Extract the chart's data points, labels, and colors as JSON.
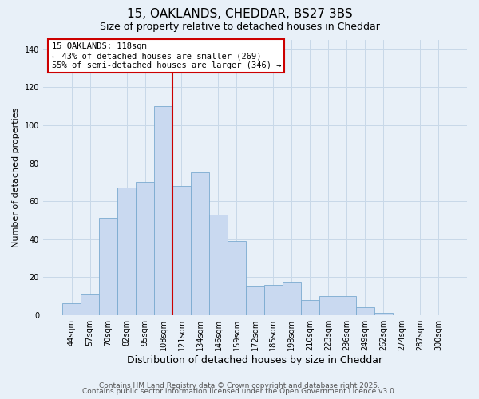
{
  "title": "15, OAKLANDS, CHEDDAR, BS27 3BS",
  "subtitle": "Size of property relative to detached houses in Cheddar",
  "xlabel": "Distribution of detached houses by size in Cheddar",
  "ylabel": "Number of detached properties",
  "categories": [
    "44sqm",
    "57sqm",
    "70sqm",
    "82sqm",
    "95sqm",
    "108sqm",
    "121sqm",
    "134sqm",
    "146sqm",
    "159sqm",
    "172sqm",
    "185sqm",
    "198sqm",
    "210sqm",
    "223sqm",
    "236sqm",
    "249sqm",
    "262sqm",
    "274sqm",
    "287sqm",
    "300sqm"
  ],
  "values": [
    6,
    11,
    51,
    67,
    70,
    110,
    68,
    75,
    53,
    39,
    15,
    16,
    17,
    8,
    10,
    10,
    4,
    1,
    0,
    0,
    0
  ],
  "bar_color": "#c9d9f0",
  "bar_edge_color": "#7aaad0",
  "bar_width": 1.0,
  "vline_color": "#cc0000",
  "vline_x": 6.0,
  "ylim": [
    0,
    145
  ],
  "yticks": [
    0,
    20,
    40,
    60,
    80,
    100,
    120,
    140
  ],
  "annotation_title": "15 OAKLANDS: 118sqm",
  "annotation_line1": "← 43% of detached houses are smaller (269)",
  "annotation_line2": "55% of semi-detached houses are larger (346) →",
  "annotation_box_facecolor": "#ffffff",
  "annotation_box_edgecolor": "#cc0000",
  "grid_color": "#c8d8e8",
  "background_color": "#e8f0f8",
  "plot_bg_color": "#e8f0f8",
  "footer_line1": "Contains HM Land Registry data © Crown copyright and database right 2025.",
  "footer_line2": "Contains public sector information licensed under the Open Government Licence v3.0.",
  "title_fontsize": 11,
  "subtitle_fontsize": 9,
  "xlabel_fontsize": 9,
  "ylabel_fontsize": 8,
  "tick_fontsize": 7,
  "annotation_fontsize": 7.5,
  "footer_fontsize": 6.5
}
